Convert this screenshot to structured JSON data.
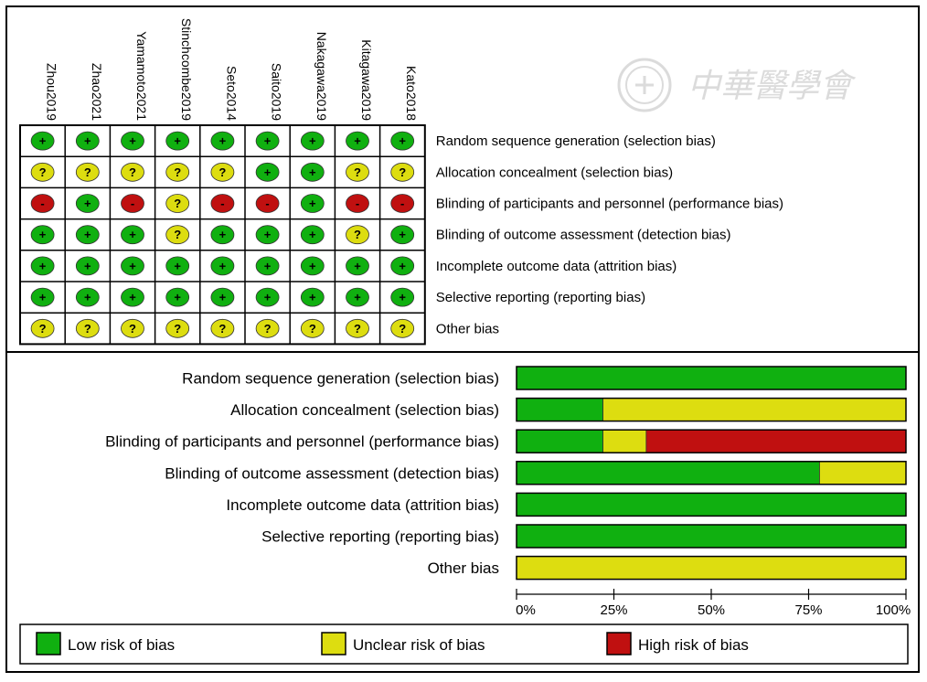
{
  "colors": {
    "low": "#10B010",
    "unclear": "#DDDD10",
    "high": "#C01010"
  },
  "watermark": {
    "text": "中華醫學會",
    "seal": "seal-icon"
  },
  "chart_data": [
    {
      "type": "table",
      "studies": [
        "Zhou2019",
        "Zhao2021",
        "Yamamoto2021",
        "Stinchcombe2019",
        "Seto2014",
        "Saito2019",
        "Nakagawa2019",
        "Kitagawa2019",
        "Kato2018"
      ],
      "domains": [
        "Random sequence generation (selection bias)",
        "Allocation concealment (selection bias)",
        "Blinding of participants and personnel (performance bias)",
        "Blinding of outcome assessment (detection bias)",
        "Incomplete outcome data (attrition bias)",
        "Selective reporting (reporting bias)",
        "Other bias"
      ],
      "symbols": {
        "low": "+",
        "unclear": "?",
        "high": "-"
      },
      "judgements": [
        [
          "low",
          "low",
          "low",
          "low",
          "low",
          "low",
          "low",
          "low",
          "low"
        ],
        [
          "unclear",
          "unclear",
          "unclear",
          "unclear",
          "unclear",
          "low",
          "low",
          "unclear",
          "unclear"
        ],
        [
          "high",
          "low",
          "high",
          "unclear",
          "high",
          "high",
          "low",
          "high",
          "high"
        ],
        [
          "low",
          "low",
          "low",
          "unclear",
          "low",
          "low",
          "low",
          "unclear",
          "low"
        ],
        [
          "low",
          "low",
          "low",
          "low",
          "low",
          "low",
          "low",
          "low",
          "low"
        ],
        [
          "low",
          "low",
          "low",
          "low",
          "low",
          "low",
          "low",
          "low",
          "low"
        ],
        [
          "unclear",
          "unclear",
          "unclear",
          "unclear",
          "unclear",
          "unclear",
          "unclear",
          "unclear",
          "unclear"
        ]
      ]
    },
    {
      "type": "bar",
      "stacked": true,
      "orientation": "horizontal",
      "categories": [
        "Random sequence generation (selection bias)",
        "Allocation concealment (selection bias)",
        "Blinding of participants and personnel (performance bias)",
        "Blinding of outcome assessment (detection bias)",
        "Incomplete outcome data (attrition bias)",
        "Selective reporting (reporting bias)",
        "Other bias"
      ],
      "series": [
        {
          "name": "Low risk of bias",
          "key": "low",
          "values": [
            100,
            22.2,
            22.2,
            77.8,
            100,
            100,
            0
          ]
        },
        {
          "name": "Unclear risk of bias",
          "key": "unclear",
          "values": [
            0,
            77.8,
            11.1,
            22.2,
            0,
            0,
            100
          ]
        },
        {
          "name": "High risk of bias",
          "key": "high",
          "values": [
            0,
            0,
            66.7,
            0,
            0,
            0,
            0
          ]
        }
      ],
      "xlim": [
        0,
        100
      ],
      "x_ticks": [
        "0%",
        "25%",
        "50%",
        "75%",
        "100%"
      ],
      "legend_position": "bottom"
    }
  ]
}
